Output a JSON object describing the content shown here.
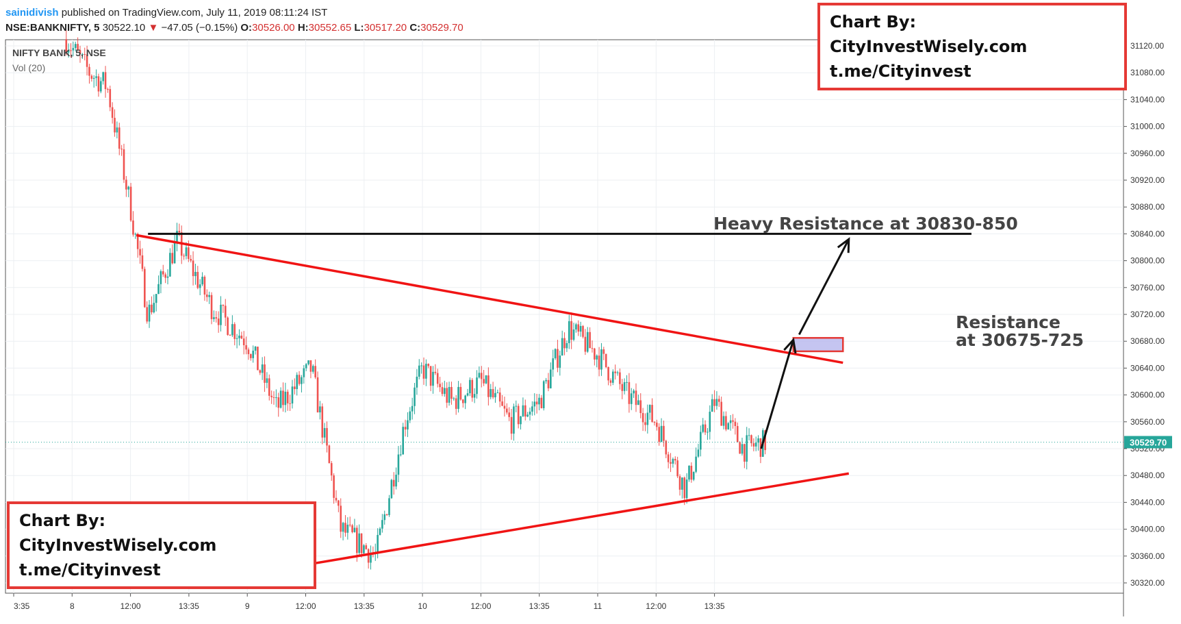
{
  "header": {
    "author": "sainidivish",
    "published": " published on TradingView.com, July 11, 2019 08:11:24 IST",
    "symbol": "NSE:BANKNIFTY, 5",
    "last": "30522.10",
    "change_arrow": "▼",
    "change": "−47.05 (−0.15%)",
    "open_label": "O:",
    "open": "30526.00",
    "high_label": "H:",
    "high": "30552.65",
    "low_label": "L:",
    "low": "30517.20",
    "close_label": "C:",
    "close": "30529.70"
  },
  "pane": {
    "title": "NIFTY BANK, 5, NSE",
    "vol_label": "Vol (20)"
  },
  "watermarks": {
    "line1": "Chart By: CityInvestWisely.com",
    "line2": "t.me/Cityinvest"
  },
  "annotations": {
    "heavy_resistance": "Heavy Resistance at 30830-850",
    "resistance_line1": "Resistance",
    "resistance_line2": "at 30675-725"
  },
  "price_tag": "30529.70",
  "colors": {
    "up": "#26a69a",
    "down": "#ef5350",
    "trendline": "#f01414",
    "resistance_line": "#111111",
    "zone_fill": "#b6b6ee",
    "tag": "#26a69a"
  },
  "chart_data": {
    "type": "candlestick",
    "y_ticks": [
      31120,
      31080,
      31040,
      31000,
      30960,
      30920,
      30880,
      30840,
      30800,
      30760,
      30720,
      30680,
      30640,
      30600,
      30560,
      30520,
      30480,
      30440,
      30400,
      30360,
      30320
    ],
    "ylim": [
      30300,
      31150
    ],
    "x_ticks": [
      "3:35",
      "8",
      "12:00",
      "13:35",
      "9",
      "12:00",
      "13:35",
      "10",
      "12:00",
      "13:35",
      "11",
      "12:00",
      "13:35"
    ],
    "current_price": 30529.7,
    "resistance_level": 30840,
    "resistance_zone": [
      30665,
      30685
    ],
    "upper_trendline": [
      [
        2.1,
        30838
      ],
      [
        14.2,
        30648
      ]
    ],
    "lower_trendline": [
      [
        5.0,
        30347
      ],
      [
        14.3,
        30483
      ]
    ],
    "arrows": [
      [
        12.8,
        30520,
        13.35,
        30682
      ],
      [
        13.45,
        30690,
        14.3,
        30832
      ]
    ],
    "close_path": [
      [
        0.9,
        31130
      ],
      [
        1.3,
        31080
      ],
      [
        1.6,
        31060
      ],
      [
        2.0,
        30880
      ],
      [
        2.3,
        30720
      ],
      [
        2.8,
        30830
      ],
      [
        3.4,
        30730
      ],
      [
        4.0,
        30680
      ],
      [
        4.5,
        30580
      ],
      [
        5.1,
        30640
      ],
      [
        5.6,
        30400
      ],
      [
        6.2,
        30360
      ],
      [
        6.7,
        30560
      ],
      [
        7.0,
        30640
      ],
      [
        7.5,
        30590
      ],
      [
        8.0,
        30620
      ],
      [
        8.5,
        30560
      ],
      [
        9.0,
        30590
      ],
      [
        9.5,
        30700
      ],
      [
        10.0,
        30660
      ],
      [
        10.5,
        30600
      ],
      [
        11.0,
        30560
      ],
      [
        11.5,
        30460
      ],
      [
        12.0,
        30590
      ],
      [
        12.5,
        30520
      ],
      [
        12.9,
        30530
      ]
    ]
  }
}
